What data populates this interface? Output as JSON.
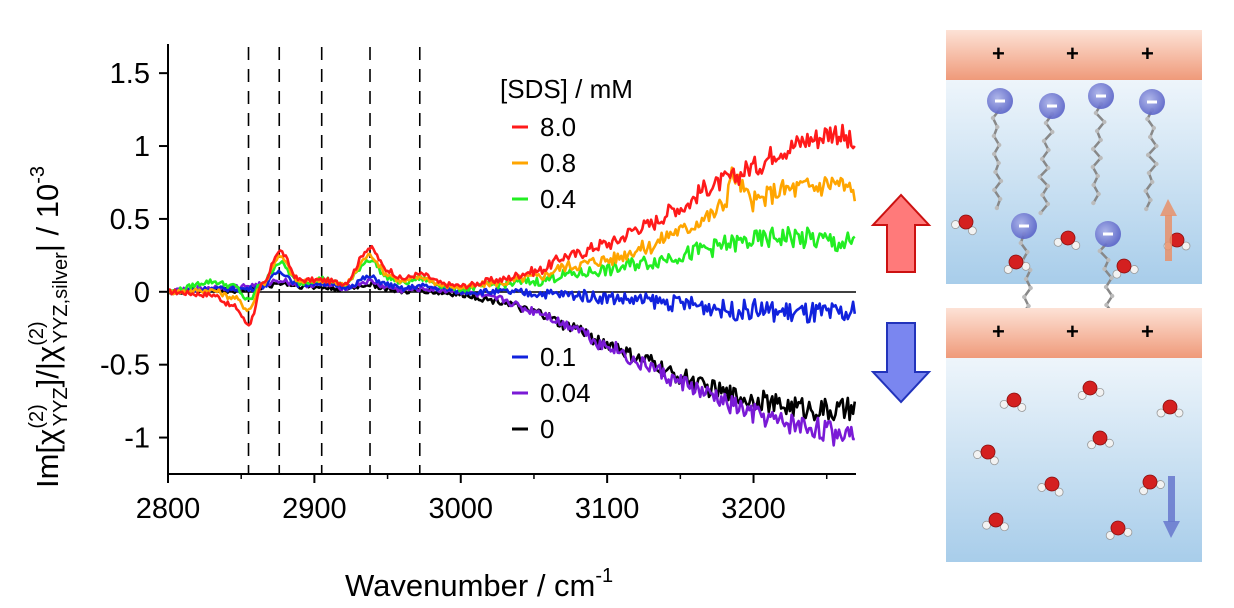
{
  "chart_data": {
    "type": "line",
    "xlabel": "Wavenumber / cm",
    "xlabel_sup": "-1",
    "ylabel": {
      "p1": "Im[χ",
      "p1_sup": "(2)",
      "p1_sub": "YYZ",
      "p2": "]/|χ",
      "p2_sup": "(2)",
      "p2_sub": "YYZ,silver",
      "p3": "| / 10",
      "p3_sup": "-3"
    },
    "xlim": [
      2800,
      3270
    ],
    "ylim": [
      -1.25,
      1.7
    ],
    "x_ticks": [
      2800,
      2900,
      3000,
      3100,
      3200
    ],
    "x_tick_labels": [
      "2800",
      "2900",
      "3000",
      "3100",
      "3200"
    ],
    "y_ticks": [
      1.5,
      1,
      0.5,
      0,
      -0.5,
      -1
    ],
    "y_tick_labels": [
      "1.5",
      "1",
      "0.5",
      "0",
      "-0.5",
      "-1"
    ],
    "zero_line": true,
    "dashed_lines_x": [
      2855,
      2876,
      2905,
      2938,
      2972
    ],
    "legend_title": "[SDS] / mM",
    "series": [
      {
        "name": "8.0",
        "color": "#ff1a1a",
        "x": [
          2800,
          2830,
          2845,
          2855,
          2865,
          2876,
          2890,
          2905,
          2920,
          2938,
          2950,
          2960,
          2972,
          2990,
          3000,
          3025,
          3050,
          3075,
          3100,
          3125,
          3150,
          3170,
          3185,
          3200,
          3220,
          3240,
          3255,
          3270
        ],
        "y": [
          0.0,
          -0.02,
          -0.1,
          -0.22,
          0.05,
          0.28,
          0.08,
          0.08,
          0.06,
          0.3,
          0.15,
          0.09,
          0.12,
          0.05,
          0.04,
          0.08,
          0.14,
          0.25,
          0.33,
          0.45,
          0.58,
          0.72,
          0.78,
          0.86,
          0.98,
          1.05,
          1.1,
          1.0
        ]
      },
      {
        "name": "0.8",
        "color": "#ffa500",
        "x": [
          2800,
          2830,
          2845,
          2855,
          2865,
          2876,
          2890,
          2905,
          2920,
          2938,
          2950,
          2960,
          2972,
          2990,
          3000,
          3025,
          3050,
          3075,
          3100,
          3125,
          3150,
          3170,
          3180,
          3185,
          3200,
          3220,
          3240,
          3255,
          3270
        ],
        "y": [
          0.0,
          0.01,
          -0.04,
          -0.12,
          0.06,
          0.24,
          0.07,
          0.08,
          0.05,
          0.25,
          0.12,
          0.07,
          0.1,
          0.04,
          0.03,
          0.06,
          0.1,
          0.18,
          0.22,
          0.3,
          0.42,
          0.52,
          0.6,
          0.8,
          0.62,
          0.7,
          0.72,
          0.75,
          0.68
        ]
      },
      {
        "name": "0.4",
        "color": "#22ee22",
        "x": [
          2800,
          2830,
          2845,
          2855,
          2865,
          2876,
          2890,
          2905,
          2920,
          2938,
          2950,
          2960,
          2972,
          2990,
          3000,
          3025,
          3050,
          3075,
          3100,
          3125,
          3150,
          3170,
          3185,
          3200,
          3220,
          3240,
          3255,
          3270
        ],
        "y": [
          0.0,
          0.07,
          0.04,
          -0.06,
          0.07,
          0.2,
          0.06,
          0.09,
          0.05,
          0.22,
          0.1,
          0.06,
          0.09,
          0.04,
          0.02,
          0.05,
          0.07,
          0.12,
          0.15,
          0.2,
          0.25,
          0.3,
          0.33,
          0.35,
          0.38,
          0.36,
          0.34,
          0.32
        ]
      },
      {
        "name": "0.1",
        "color": "#1122dd",
        "x": [
          2800,
          2830,
          2845,
          2855,
          2865,
          2876,
          2890,
          2905,
          2920,
          2938,
          2950,
          2960,
          2972,
          2990,
          3000,
          3025,
          3050,
          3075,
          3100,
          3125,
          3150,
          3170,
          3185,
          3200,
          3220,
          3240,
          3255,
          3270
        ],
        "y": [
          0.0,
          0.02,
          0.02,
          0.02,
          0.04,
          0.14,
          0.05,
          0.06,
          0.03,
          0.1,
          0.05,
          0.02,
          0.04,
          0.02,
          0.0,
          0.0,
          -0.01,
          -0.02,
          -0.04,
          -0.06,
          -0.08,
          -0.1,
          -0.13,
          -0.12,
          -0.14,
          -0.15,
          -0.16,
          -0.15
        ]
      },
      {
        "name": "0.04",
        "color": "#7a1ad6",
        "x": [
          2800,
          2830,
          2845,
          2855,
          2865,
          2876,
          2890,
          2905,
          2920,
          2938,
          2950,
          2960,
          2972,
          2990,
          3000,
          3025,
          3050,
          3075,
          3100,
          3125,
          3150,
          3170,
          3185,
          3200,
          3220,
          3240,
          3255,
          3270
        ],
        "y": [
          0.0,
          0.03,
          0.03,
          0.04,
          0.05,
          0.08,
          0.05,
          0.05,
          0.03,
          0.07,
          0.03,
          0.01,
          0.02,
          0.01,
          0.0,
          -0.05,
          -0.13,
          -0.23,
          -0.37,
          -0.5,
          -0.62,
          -0.71,
          -0.78,
          -0.84,
          -0.9,
          -0.93,
          -0.97,
          -0.95
        ]
      },
      {
        "name": "0",
        "color": "#000000",
        "x": [
          2800,
          2830,
          2845,
          2855,
          2865,
          2876,
          2890,
          2905,
          2920,
          2938,
          2950,
          2960,
          2972,
          2990,
          3000,
          3025,
          3050,
          3075,
          3100,
          3125,
          3150,
          3170,
          3185,
          3200,
          3220,
          3240,
          3255,
          3270
        ],
        "y": [
          0.0,
          0.01,
          0.01,
          0.02,
          0.03,
          0.06,
          0.04,
          0.03,
          0.02,
          0.05,
          0.02,
          0.0,
          0.01,
          -0.01,
          -0.02,
          -0.06,
          -0.14,
          -0.24,
          -0.36,
          -0.47,
          -0.58,
          -0.66,
          -0.71,
          -0.74,
          -0.78,
          -0.8,
          -0.82,
          -0.81
        ]
      }
    ],
    "legend_upper": [
      "8.0",
      "0.8",
      "0.4"
    ],
    "legend_lower": [
      "0.1",
      "0.04",
      "0"
    ]
  },
  "schematic": {
    "top_plus": [
      "+",
      "+",
      "+"
    ],
    "bottom_plus": [
      "+",
      "+",
      "+"
    ],
    "arrow_up_color": "#ff6666",
    "arrow_down_color": "#6677ee"
  }
}
